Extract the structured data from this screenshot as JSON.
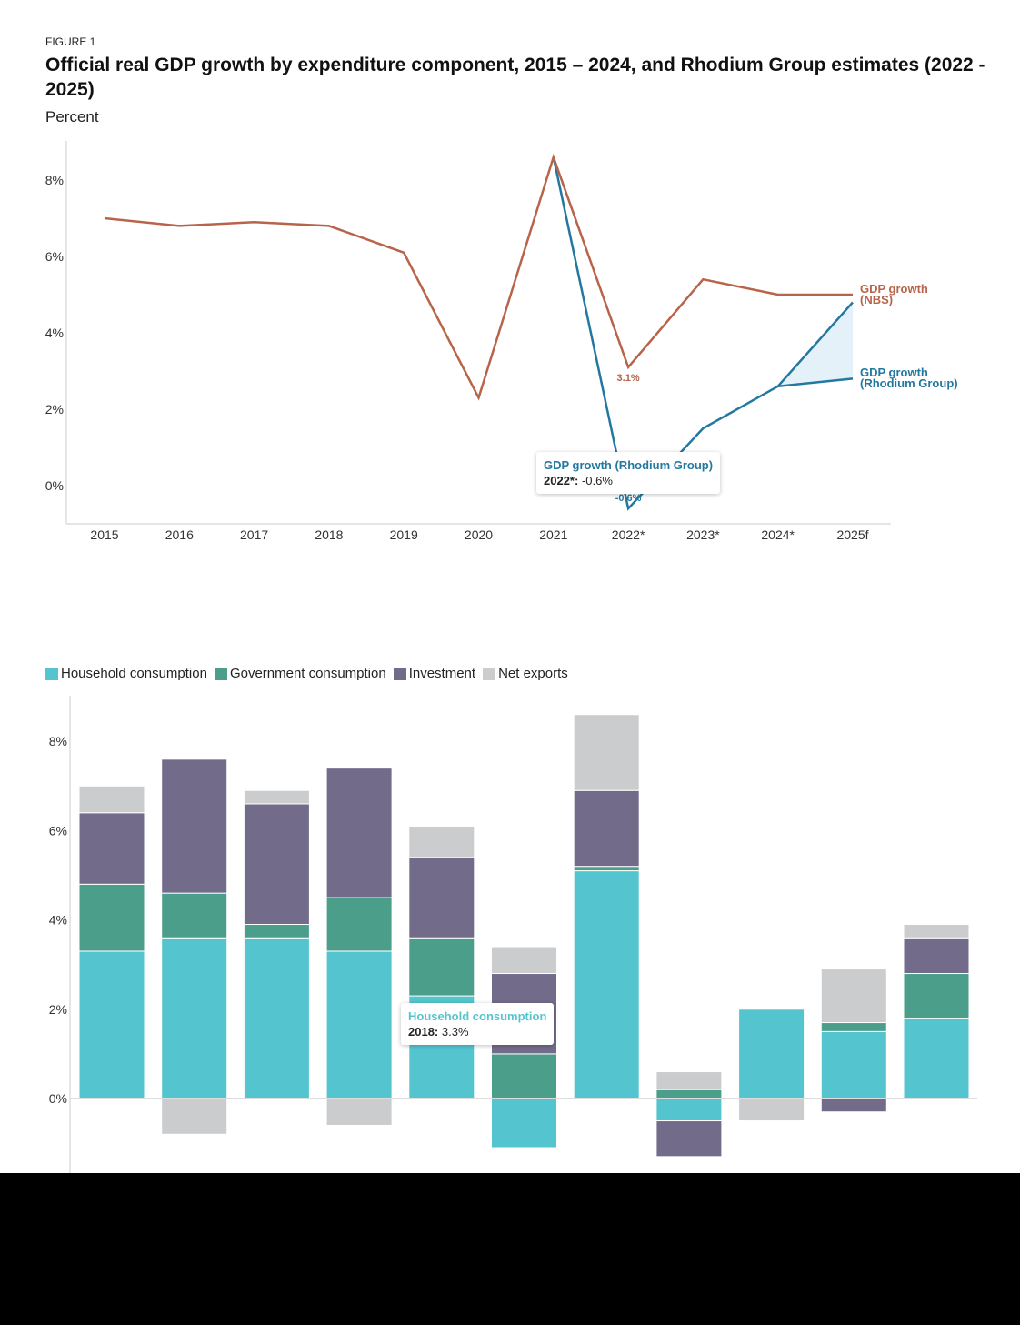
{
  "figure_label": "FIGURE 1",
  "title": "Official real GDP growth by expenditure component, 2015 – 2024, and Rhodium Group estimates (2022 - 2025)",
  "unit": "Percent",
  "colors": {
    "nbs": "#b8644a",
    "rhodium": "#2378a0",
    "range_fill": "#e5f1f8",
    "household": "#54c5cf",
    "government": "#4b9e8a",
    "investment": "#736b8a",
    "net_exports": "#cbcccd"
  },
  "chart_data": [
    {
      "type": "line",
      "categories": [
        "2015",
        "2016",
        "2017",
        "2018",
        "2019",
        "2020",
        "2021",
        "2022*",
        "2023*",
        "2024*",
        "2025f"
      ],
      "ylim": [
        -1,
        9
      ],
      "yticks": [
        0,
        2,
        4,
        6,
        8
      ],
      "ytick_labels": [
        "0%",
        "2%",
        "4%",
        "6%",
        "8%"
      ],
      "grid": false,
      "series": [
        {
          "name": "GDP growth (NBS)",
          "label_line1": "GDP growth",
          "label_line2": "(NBS)",
          "values": [
            7.0,
            6.8,
            6.9,
            6.8,
            6.1,
            2.3,
            8.6,
            3.1,
            5.4,
            5.0,
            5.0
          ]
        },
        {
          "name": "GDP growth (Rhodium Group)",
          "label_line1": "GDP growth",
          "label_line2": "(Rhodium Group)",
          "values": [
            null,
            null,
            null,
            null,
            null,
            null,
            8.6,
            -0.6,
            1.5,
            2.6,
            2.8
          ],
          "range_2025": [
            2.8,
            4.8
          ]
        }
      ],
      "annotations": [
        {
          "category": "2022*",
          "series": "GDP growth (NBS)",
          "text": "3.1%"
        },
        {
          "category": "2022*",
          "series": "GDP growth (Rhodium Group)",
          "text": "-0.6%"
        }
      ],
      "tooltip": {
        "series": "GDP growth (Rhodium Group)",
        "category": "2022*:",
        "value": "-0.6%"
      }
    },
    {
      "type": "bar",
      "stacked": true,
      "ylim": [
        -1.7,
        9
      ],
      "yticks": [
        0,
        2,
        4,
        6,
        8
      ],
      "ytick_labels": [
        "0%",
        "2%",
        "4%",
        "6%",
        "8%"
      ],
      "legend_position": "top-left",
      "series": [
        {
          "name": "Household consumption",
          "color_key": "household",
          "values": [
            3.3,
            3.6,
            3.6,
            3.3,
            2.3,
            -1.1,
            5.1,
            -0.5,
            2.0,
            1.5,
            1.8
          ]
        },
        {
          "name": "Government consumption",
          "color_key": "government",
          "values": [
            1.5,
            1.0,
            0.3,
            1.2,
            1.3,
            1.0,
            0.1,
            0.2,
            0.0,
            0.2,
            1.0
          ]
        },
        {
          "name": "Investment",
          "color_key": "investment",
          "values": [
            1.6,
            3.0,
            2.7,
            2.9,
            1.8,
            1.8,
            1.7,
            -0.8,
            0.0,
            -0.3,
            0.8
          ]
        },
        {
          "name": "Net exports",
          "color_key": "net_exports",
          "values": [
            0.6,
            -0.8,
            0.3,
            -0.6,
            0.7,
            0.6,
            1.7,
            0.4,
            -0.5,
            1.2,
            0.3
          ]
        }
      ],
      "tooltip": {
        "series": "Household consumption",
        "category": "2018:",
        "value": "3.3%"
      }
    }
  ]
}
